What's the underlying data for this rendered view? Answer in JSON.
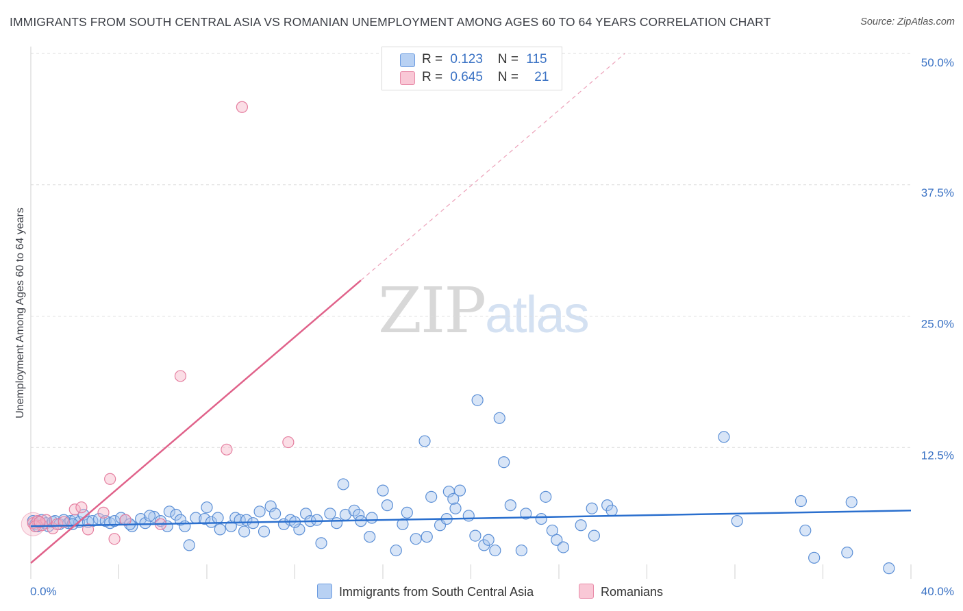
{
  "title": "IMMIGRANTS FROM SOUTH CENTRAL ASIA VS ROMANIAN UNEMPLOYMENT AMONG AGES 60 TO 64 YEARS CORRELATION CHART",
  "source": "Source: ZipAtlas.com",
  "watermark": {
    "zip": "ZIP",
    "atlas": "atlas"
  },
  "legend_top": {
    "rows": [
      {
        "r_label": "R = ",
        "r_value": "0.123",
        "n_label": "N = ",
        "n_value": "115"
      },
      {
        "r_label": "R = ",
        "r_value": "0.645",
        "n_label": "N = ",
        "n_value": "21"
      }
    ]
  },
  "colors": {
    "blue_fill": "#a9c5ee",
    "blue_stroke": "#5b8fd6",
    "blue_line": "#2a6fce",
    "pink_fill": "#f7b6c8",
    "pink_stroke": "#e57fa0",
    "pink_line": "#e0628a",
    "grid": "#dcdcdc",
    "tick_label": "#3a72c4"
  },
  "chart_data": {
    "type": "scatter",
    "title": "IMMIGRANTS FROM SOUTH CENTRAL ASIA VS ROMANIAN UNEMPLOYMENT AMONG AGES 60 TO 64 YEARS CORRELATION CHART",
    "xlabel": "",
    "ylabel": "Unemployment Among Ages 60 to 64 years",
    "xlim": [
      0,
      40
    ],
    "ylim": [
      0,
      50
    ],
    "x_tick_labels": [
      "0.0%",
      "40.0%"
    ],
    "y_ticks": [
      12.5,
      25.0,
      37.5,
      50.0
    ],
    "y_tick_labels": [
      "12.5%",
      "25.0%",
      "37.5%",
      "50.0%"
    ],
    "grid": true,
    "legend_position": "bottom",
    "series": [
      {
        "name": "Immigrants from South Central Asia",
        "color": "#a9c5ee",
        "trend": {
          "x": [
            0,
            40
          ],
          "y": [
            5.0,
            6.5
          ]
        },
        "points": [
          [
            0.1,
            5.5
          ],
          [
            0.2,
            5.2
          ],
          [
            0.4,
            5.4
          ],
          [
            0.5,
            5.6
          ],
          [
            0.7,
            5.3
          ],
          [
            0.8,
            5.0
          ],
          [
            1.0,
            5.4
          ],
          [
            1.1,
            5.5
          ],
          [
            1.3,
            5.2
          ],
          [
            1.5,
            5.6
          ],
          [
            1.7,
            5.3
          ],
          [
            1.8,
            5.5
          ],
          [
            2.0,
            5.6
          ],
          [
            2.2,
            5.4
          ],
          [
            2.4,
            6.1
          ],
          [
            2.6,
            5.4
          ],
          [
            2.8,
            5.5
          ],
          [
            3.1,
            5.7
          ],
          [
            3.4,
            5.5
          ],
          [
            3.6,
            5.3
          ],
          [
            3.8,
            5.5
          ],
          [
            4.1,
            5.8
          ],
          [
            4.3,
            5.6
          ],
          [
            4.6,
            5.0
          ],
          [
            5.0,
            5.7
          ],
          [
            5.2,
            5.3
          ],
          [
            5.6,
            5.9
          ],
          [
            5.9,
            5.5
          ],
          [
            6.2,
            5.0
          ],
          [
            6.3,
            6.4
          ],
          [
            6.6,
            6.1
          ],
          [
            6.8,
            5.6
          ],
          [
            7.0,
            5.0
          ],
          [
            7.2,
            3.2
          ],
          [
            7.5,
            5.8
          ],
          [
            7.9,
            5.7
          ],
          [
            8.0,
            6.8
          ],
          [
            8.2,
            5.4
          ],
          [
            8.5,
            5.8
          ],
          [
            8.6,
            4.7
          ],
          [
            9.1,
            5.0
          ],
          [
            9.3,
            5.8
          ],
          [
            9.5,
            5.6
          ],
          [
            9.8,
            5.6
          ],
          [
            10.1,
            5.3
          ],
          [
            10.4,
            6.4
          ],
          [
            10.6,
            4.5
          ],
          [
            10.9,
            6.9
          ],
          [
            11.1,
            6.2
          ],
          [
            11.5,
            5.2
          ],
          [
            11.8,
            5.6
          ],
          [
            12.2,
            4.7
          ],
          [
            12.5,
            6.2
          ],
          [
            12.7,
            5.5
          ],
          [
            13.0,
            5.6
          ],
          [
            13.2,
            3.4
          ],
          [
            13.6,
            6.2
          ],
          [
            13.9,
            5.3
          ],
          [
            14.2,
            9.0
          ],
          [
            14.3,
            6.1
          ],
          [
            14.7,
            6.5
          ],
          [
            14.9,
            6.1
          ],
          [
            15.4,
            4.0
          ],
          [
            15.5,
            5.8
          ],
          [
            16.0,
            8.4
          ],
          [
            16.2,
            7.0
          ],
          [
            16.6,
            2.7
          ],
          [
            16.9,
            5.2
          ],
          [
            17.1,
            6.3
          ],
          [
            17.5,
            3.8
          ],
          [
            17.9,
            13.1
          ],
          [
            18.0,
            4.0
          ],
          [
            18.2,
            7.8
          ],
          [
            18.6,
            5.1
          ],
          [
            18.9,
            5.7
          ],
          [
            19.0,
            8.3
          ],
          [
            19.2,
            7.6
          ],
          [
            19.3,
            6.7
          ],
          [
            19.5,
            8.4
          ],
          [
            19.9,
            6.0
          ],
          [
            20.2,
            4.1
          ],
          [
            20.3,
            17.0
          ],
          [
            20.6,
            3.2
          ],
          [
            20.8,
            3.7
          ],
          [
            21.1,
            2.7
          ],
          [
            21.3,
            15.3
          ],
          [
            21.5,
            11.1
          ],
          [
            21.8,
            7.0
          ],
          [
            22.3,
            2.7
          ],
          [
            22.5,
            6.2
          ],
          [
            23.2,
            5.7
          ],
          [
            23.4,
            7.8
          ],
          [
            23.7,
            4.6
          ],
          [
            23.9,
            3.7
          ],
          [
            24.2,
            3.0
          ],
          [
            25.0,
            5.1
          ],
          [
            25.5,
            6.7
          ],
          [
            25.6,
            4.1
          ],
          [
            26.2,
            7.0
          ],
          [
            26.4,
            6.5
          ],
          [
            31.5,
            13.5
          ],
          [
            32.1,
            5.5
          ],
          [
            35.0,
            7.4
          ],
          [
            35.2,
            4.6
          ],
          [
            35.6,
            2.0
          ],
          [
            37.1,
            2.5
          ],
          [
            37.3,
            7.3
          ],
          [
            39.0,
            1.0
          ],
          [
            0.3,
            5.0
          ],
          [
            1.9,
            5.2
          ],
          [
            4.5,
            5.2
          ],
          [
            5.4,
            6.0
          ],
          [
            9.7,
            4.5
          ],
          [
            12.0,
            5.4
          ],
          [
            15.0,
            5.5
          ]
        ]
      },
      {
        "name": "Romanians",
        "color": "#f7b6c8",
        "trend": {
          "x": [
            0,
            15
          ],
          "y": [
            1.5,
            28.4
          ]
        },
        "trend_dashed": {
          "x": [
            15,
            27
          ],
          "y": [
            28.4,
            50.0
          ]
        },
        "points": [
          [
            0.1,
            5.3
          ],
          [
            0.3,
            5.5
          ],
          [
            0.5,
            5.1
          ],
          [
            0.7,
            5.6
          ],
          [
            1.0,
            4.8
          ],
          [
            1.2,
            5.2
          ],
          [
            1.5,
            5.4
          ],
          [
            2.0,
            6.6
          ],
          [
            2.3,
            6.8
          ],
          [
            2.6,
            4.7
          ],
          [
            3.3,
            6.3
          ],
          [
            3.6,
            9.5
          ],
          [
            3.8,
            3.8
          ],
          [
            4.3,
            5.6
          ],
          [
            5.9,
            5.2
          ],
          [
            6.8,
            19.3
          ],
          [
            8.9,
            12.3
          ],
          [
            9.6,
            44.9
          ],
          [
            11.7,
            13.0
          ],
          [
            0.2,
            5.0
          ],
          [
            0.4,
            5.4
          ]
        ]
      }
    ]
  }
}
